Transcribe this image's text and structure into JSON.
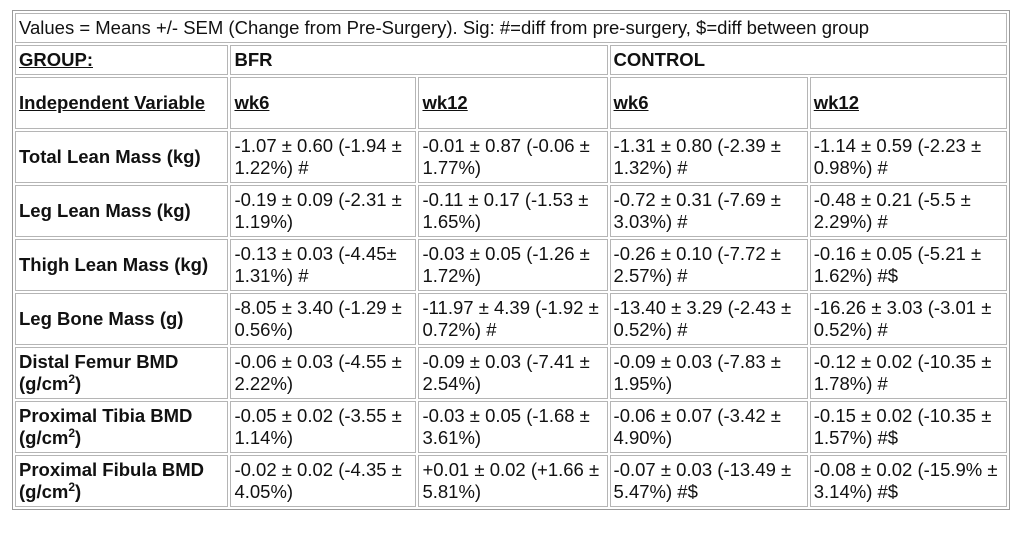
{
  "caption": "Values = Means +/- SEM (Change from Pre-Surgery). Sig: #=diff from pre-surgery, $=diff between group",
  "group_label": "GROUP:",
  "groups": [
    "BFR",
    "CONTROL"
  ],
  "iv_label": "Independent Variable",
  "timepoints": [
    "wk6",
    "wk12",
    "wk6",
    "wk12"
  ],
  "rows": [
    {
      "label": "Total Lean Mass (kg)",
      "label_sup": "",
      "label_suffix": "",
      "cells": [
        "-1.07 ± 0.60 (-1.94 ± 1.22%) #",
        "-0.01 ± 0.87 (-0.06 ± 1.77%)",
        "-1.31 ± 0.80 (-2.39 ± 1.32%) #",
        "-1.14 ± 0.59 (-2.23 ± 0.98%) #"
      ]
    },
    {
      "label": "Leg Lean Mass (kg)",
      "label_sup": "",
      "label_suffix": "",
      "cells": [
        "-0.19 ± 0.09 (-2.31 ± 1.19%)",
        "-0.11 ± 0.17 (-1.53 ± 1.65%)",
        "-0.72 ± 0.31 (-7.69 ± 3.03%) #",
        "-0.48 ± 0.21 (-5.5 ± 2.29%) #"
      ]
    },
    {
      "label": "Thigh Lean Mass (kg)",
      "label_sup": "",
      "label_suffix": "",
      "cells": [
        "-0.13 ± 0.03 (-4.45± 1.31%) #",
        "-0.03 ± 0.05 (-1.26 ± 1.72%)",
        "-0.26 ± 0.10 (-7.72 ± 2.57%) #",
        "-0.16 ± 0.05 (-5.21 ± 1.62%) #$"
      ]
    },
    {
      "label": "Leg Bone Mass (g)",
      "label_sup": "",
      "label_suffix": "",
      "cells": [
        "-8.05 ± 3.40 (-1.29 ± 0.56%)",
        "-11.97 ± 4.39 (-1.92 ± 0.72%) #",
        "-13.40 ± 3.29 (-2.43 ± 0.52%) #",
        "-16.26 ± 3.03 (-3.01 ± 0.52%) #"
      ]
    },
    {
      "label": "Distal Femur BMD (g/cm",
      "label_sup": "2",
      "label_suffix": ")",
      "cells": [
        "-0.06 ± 0.03 (-4.55 ± 2.22%)",
        "-0.09 ± 0.03 (-7.41 ± 2.54%)",
        "-0.09 ± 0.03 (-7.83 ± 1.95%)",
        "-0.12 ± 0.02 (-10.35 ± 1.78%) #"
      ]
    },
    {
      "label": "Proximal Tibia BMD (g/cm",
      "label_sup": "2",
      "label_suffix": ")",
      "cells": [
        "-0.05 ± 0.02 (-3.55 ± 1.14%)",
        "-0.03 ± 0.05 (-1.68 ± 3.61%)",
        "-0.06 ± 0.07 (-3.42 ± 4.90%)",
        "-0.15 ± 0.02 (-10.35 ± 1.57%) #$"
      ]
    },
    {
      "label": "Proximal Fibula BMD (g/cm",
      "label_sup": "2",
      "label_suffix": ")",
      "cells": [
        "-0.02 ± 0.02 (-4.35 ± 4.05%)",
        "+0.01 ± 0.02 (+1.66 ± 5.81%)",
        "-0.07 ± 0.03 (-13.49 ± 5.47%) #$",
        "-0.08 ± 0.02 (-15.9% ± 3.14%) #$"
      ]
    }
  ]
}
